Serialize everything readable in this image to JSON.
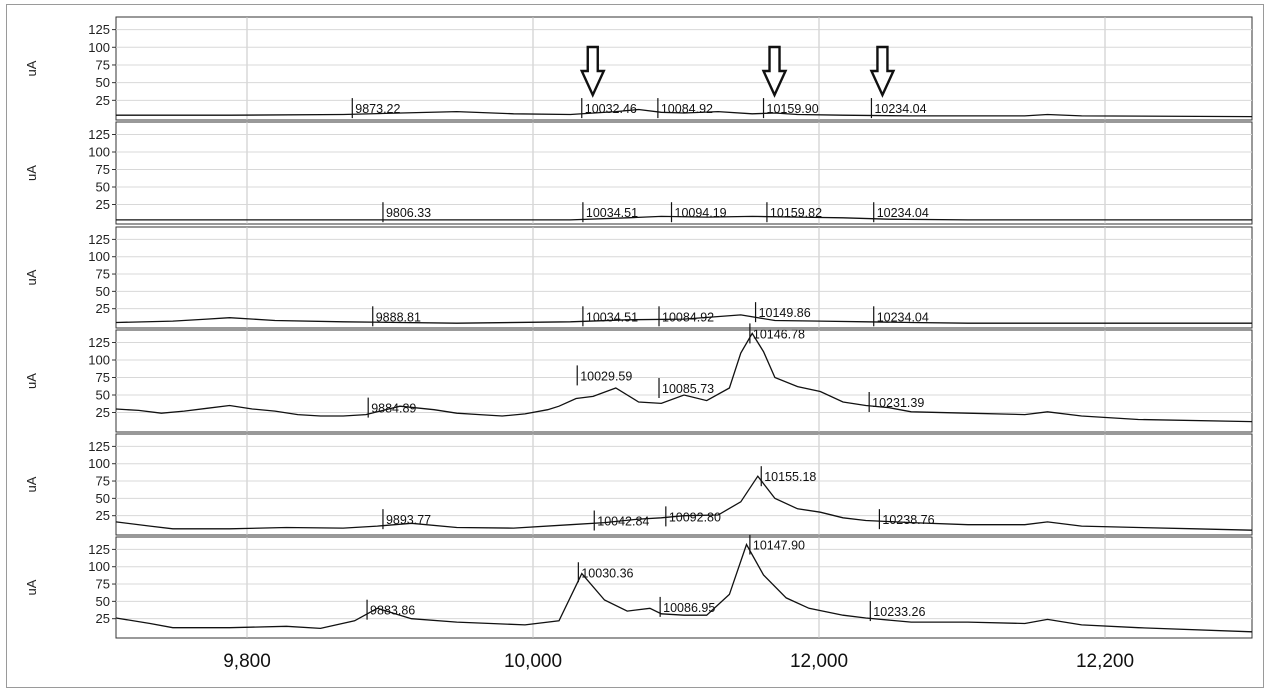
{
  "chart_data": {
    "type": "line",
    "stacked_panels": true,
    "x_tick_labels": [
      "9,800",
      "10,000",
      "12,000",
      "12,200"
    ],
    "y_tick_labels": [
      "125",
      "100",
      "75",
      "50",
      "25"
    ],
    "ylim": [
      0,
      140
    ],
    "grid": true,
    "arrows_over_panel_1": [
      "10032.46",
      "10159.90",
      "10234.04"
    ],
    "series": [
      {
        "ylabel": "uA",
        "trace": [
          [
            0,
            4
          ],
          [
            0.1,
            4
          ],
          [
            0.2,
            5
          ],
          [
            0.3,
            9
          ],
          [
            0.35,
            6
          ],
          [
            0.4,
            5
          ],
          [
            0.44,
            9
          ],
          [
            0.46,
            12
          ],
          [
            0.48,
            8
          ],
          [
            0.5,
            7
          ],
          [
            0.53,
            9
          ],
          [
            0.56,
            6
          ],
          [
            0.58,
            7
          ],
          [
            0.6,
            5
          ],
          [
            0.64,
            4
          ],
          [
            0.7,
            3
          ],
          [
            0.8,
            3
          ],
          [
            0.82,
            5
          ],
          [
            0.85,
            3
          ],
          [
            1,
            2
          ]
        ],
        "peaks": [
          {
            "label": "9873.22",
            "x": 0.208,
            "y": 14
          },
          {
            "label": "10032.46",
            "x": 0.41,
            "y": 14
          },
          {
            "label": "10084.92",
            "x": 0.477,
            "y": 14
          },
          {
            "label": "10159.90",
            "x": 0.57,
            "y": 14
          },
          {
            "label": "10234.04",
            "x": 0.665,
            "y": 14
          }
        ]
      },
      {
        "ylabel": "uA",
        "trace": [
          [
            0,
            3
          ],
          [
            0.2,
            3
          ],
          [
            0.3,
            3
          ],
          [
            0.4,
            3
          ],
          [
            0.45,
            6
          ],
          [
            0.48,
            8
          ],
          [
            0.52,
            7
          ],
          [
            0.56,
            8
          ],
          [
            0.6,
            7
          ],
          [
            0.64,
            6
          ],
          [
            0.68,
            4
          ],
          [
            0.75,
            3
          ],
          [
            0.8,
            3
          ],
          [
            0.87,
            3
          ],
          [
            1,
            3
          ]
        ],
        "peaks": [
          {
            "label": "9806.33",
            "x": 0.235,
            "y": 14
          },
          {
            "label": "10034.51",
            "x": 0.411,
            "y": 14
          },
          {
            "label": "10094.19",
            "x": 0.489,
            "y": 14
          },
          {
            "label": "10159.82",
            "x": 0.573,
            "y": 14
          },
          {
            "label": "10234.04",
            "x": 0.667,
            "y": 14
          }
        ]
      },
      {
        "ylabel": "uA",
        "trace": [
          [
            0,
            5
          ],
          [
            0.05,
            7
          ],
          [
            0.08,
            10
          ],
          [
            0.1,
            12
          ],
          [
            0.14,
            8
          ],
          [
            0.2,
            6
          ],
          [
            0.3,
            4
          ],
          [
            0.4,
            6
          ],
          [
            0.45,
            9
          ],
          [
            0.5,
            10
          ],
          [
            0.55,
            16
          ],
          [
            0.58,
            8
          ],
          [
            0.62,
            7
          ],
          [
            0.66,
            6
          ],
          [
            0.7,
            5
          ],
          [
            0.75,
            4
          ],
          [
            0.8,
            4
          ],
          [
            0.85,
            4
          ],
          [
            0.95,
            4
          ],
          [
            1,
            4
          ]
        ],
        "peaks": [
          {
            "label": "9888.81",
            "x": 0.226,
            "y": 14
          },
          {
            "label": "10034.51",
            "x": 0.411,
            "y": 14
          },
          {
            "label": "10084.92",
            "x": 0.478,
            "y": 14
          },
          {
            "label": "10149.86",
            "x": 0.563,
            "y": 20
          },
          {
            "label": "10234.04",
            "x": 0.667,
            "y": 14
          }
        ]
      },
      {
        "ylabel": "uA",
        "trace": [
          [
            0,
            30
          ],
          [
            0.02,
            28
          ],
          [
            0.04,
            24
          ],
          [
            0.06,
            27
          ],
          [
            0.08,
            31
          ],
          [
            0.1,
            35
          ],
          [
            0.12,
            30
          ],
          [
            0.14,
            27
          ],
          [
            0.16,
            22
          ],
          [
            0.18,
            20
          ],
          [
            0.2,
            20
          ],
          [
            0.22,
            22
          ],
          [
            0.25,
            34
          ],
          [
            0.28,
            29
          ],
          [
            0.3,
            24
          ],
          [
            0.32,
            22
          ],
          [
            0.34,
            20
          ],
          [
            0.36,
            23
          ],
          [
            0.38,
            29
          ],
          [
            0.39,
            34
          ],
          [
            0.405,
            45
          ],
          [
            0.42,
            48
          ],
          [
            0.44,
            60
          ],
          [
            0.46,
            40
          ],
          [
            0.48,
            38
          ],
          [
            0.5,
            50
          ],
          [
            0.52,
            42
          ],
          [
            0.54,
            60
          ],
          [
            0.55,
            110
          ],
          [
            0.56,
            138
          ],
          [
            0.57,
            112
          ],
          [
            0.58,
            75
          ],
          [
            0.6,
            62
          ],
          [
            0.62,
            55
          ],
          [
            0.64,
            40
          ],
          [
            0.66,
            35
          ],
          [
            0.68,
            32
          ],
          [
            0.7,
            26
          ],
          [
            0.75,
            24
          ],
          [
            0.8,
            22
          ],
          [
            0.82,
            26
          ],
          [
            0.85,
            20
          ],
          [
            0.9,
            15
          ],
          [
            1,
            12
          ]
        ],
        "peaks": [
          {
            "label": "9884.89",
            "x": 0.222,
            "y": 32
          },
          {
            "label": "10029.59",
            "x": 0.406,
            "y": 78
          },
          {
            "label": "10085.73",
            "x": 0.478,
            "y": 60
          },
          {
            "label": "10146.78",
            "x": 0.558,
            "y": 138
          },
          {
            "label": "10231.39",
            "x": 0.663,
            "y": 40
          }
        ]
      },
      {
        "ylabel": "uA",
        "trace": [
          [
            0,
            16
          ],
          [
            0.03,
            10
          ],
          [
            0.05,
            6
          ],
          [
            0.1,
            6
          ],
          [
            0.15,
            8
          ],
          [
            0.2,
            7
          ],
          [
            0.23,
            10
          ],
          [
            0.26,
            14
          ],
          [
            0.3,
            8
          ],
          [
            0.35,
            7
          ],
          [
            0.4,
            12
          ],
          [
            0.43,
            15
          ],
          [
            0.46,
            20
          ],
          [
            0.48,
            22
          ],
          [
            0.5,
            25
          ],
          [
            0.53,
            26
          ],
          [
            0.55,
            45
          ],
          [
            0.565,
            82
          ],
          [
            0.58,
            50
          ],
          [
            0.6,
            35
          ],
          [
            0.62,
            30
          ],
          [
            0.64,
            22
          ],
          [
            0.66,
            18
          ],
          [
            0.7,
            15
          ],
          [
            0.75,
            12
          ],
          [
            0.8,
            12
          ],
          [
            0.82,
            16
          ],
          [
            0.85,
            10
          ],
          [
            0.9,
            8
          ],
          [
            0.95,
            6
          ],
          [
            1,
            4
          ]
        ],
        "peaks": [
          {
            "label": "9893.77",
            "x": 0.235,
            "y": 20
          },
          {
            "label": "10042.84",
            "x": 0.421,
            "y": 18
          },
          {
            "label": "10092.80",
            "x": 0.484,
            "y": 24
          },
          {
            "label": "10155.18",
            "x": 0.568,
            "y": 82
          },
          {
            "label": "10238.76",
            "x": 0.672,
            "y": 20
          }
        ]
      },
      {
        "ylabel": "uA",
        "trace": [
          [
            0,
            26
          ],
          [
            0.03,
            18
          ],
          [
            0.05,
            12
          ],
          [
            0.1,
            12
          ],
          [
            0.15,
            14
          ],
          [
            0.18,
            11
          ],
          [
            0.21,
            22
          ],
          [
            0.23,
            40
          ],
          [
            0.26,
            25
          ],
          [
            0.3,
            20
          ],
          [
            0.33,
            18
          ],
          [
            0.36,
            16
          ],
          [
            0.39,
            22
          ],
          [
            0.41,
            90
          ],
          [
            0.43,
            52
          ],
          [
            0.45,
            36
          ],
          [
            0.47,
            40
          ],
          [
            0.48,
            32
          ],
          [
            0.5,
            30
          ],
          [
            0.52,
            30
          ],
          [
            0.54,
            60
          ],
          [
            0.555,
            132
          ],
          [
            0.57,
            88
          ],
          [
            0.59,
            55
          ],
          [
            0.61,
            40
          ],
          [
            0.64,
            30
          ],
          [
            0.66,
            26
          ],
          [
            0.7,
            20
          ],
          [
            0.75,
            20
          ],
          [
            0.8,
            18
          ],
          [
            0.82,
            24
          ],
          [
            0.85,
            16
          ],
          [
            0.9,
            12
          ],
          [
            1,
            6
          ]
        ],
        "peaks": [
          {
            "label": "9883.86",
            "x": 0.221,
            "y": 38
          },
          {
            "label": "10030.36",
            "x": 0.407,
            "y": 92
          },
          {
            "label": "10086.95",
            "x": 0.479,
            "y": 42
          },
          {
            "label": "10147.90",
            "x": 0.558,
            "y": 132
          },
          {
            "label": "10233.26",
            "x": 0.664,
            "y": 36
          }
        ]
      }
    ]
  }
}
